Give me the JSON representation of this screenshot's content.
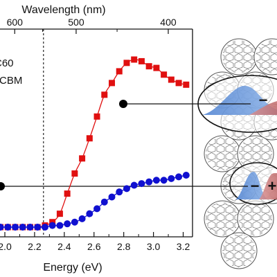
{
  "chart_data": {
    "type": "line",
    "xlabel": "Energy (eV)",
    "top_axis_label": "Wavelength (nm)",
    "xlim": [
      1.9,
      3.25
    ],
    "ylim": [
      0,
      1
    ],
    "x_ticks": [
      "2.0",
      "2.2",
      "2.4",
      "2.6",
      "2.8",
      "3.0",
      "3.2"
    ],
    "top_ticks": [
      "600",
      "500",
      "400"
    ],
    "legend": [
      "C60",
      "PCBM"
    ],
    "vertical_line_x": 2.26,
    "series": [
      {
        "name": "C60",
        "marker": "square",
        "color": "#e01010",
        "x": [
          1.92,
          1.97,
          2.02,
          2.07,
          2.12,
          2.17,
          2.22,
          2.27,
          2.32,
          2.37,
          2.42,
          2.47,
          2.52,
          2.57,
          2.62,
          2.67,
          2.72,
          2.77,
          2.82,
          2.87,
          2.92,
          2.97,
          3.02,
          3.07,
          3.12,
          3.17,
          3.22
        ],
        "y": [
          0,
          0,
          0,
          0,
          0,
          0,
          0,
          0.01,
          0.03,
          0.08,
          0.2,
          0.32,
          0.41,
          0.53,
          0.66,
          0.79,
          0.86,
          0.93,
          0.98,
          1.0,
          0.99,
          0.96,
          0.95,
          0.91,
          0.88,
          0.86,
          0.85
        ]
      },
      {
        "name": "PCBM",
        "marker": "circle",
        "color": "#1010d0",
        "x": [
          1.92,
          1.97,
          2.02,
          2.07,
          2.12,
          2.17,
          2.22,
          2.27,
          2.32,
          2.37,
          2.42,
          2.47,
          2.52,
          2.57,
          2.62,
          2.67,
          2.72,
          2.77,
          2.82,
          2.87,
          2.92,
          2.97,
          3.02,
          3.07,
          3.12,
          3.17,
          3.22
        ],
        "y": [
          0,
          0,
          0,
          0,
          0,
          0,
          0,
          0,
          0.01,
          0.01,
          0.02,
          0.03,
          0.05,
          0.08,
          0.11,
          0.15,
          0.18,
          0.21,
          0.23,
          0.25,
          0.26,
          0.27,
          0.28,
          0.28,
          0.29,
          0.3,
          0.31
        ]
      }
    ],
    "annotations": {
      "upper_bubble_sign": "−",
      "lower_bubble_signs": [
        "−",
        "+"
      ]
    }
  }
}
